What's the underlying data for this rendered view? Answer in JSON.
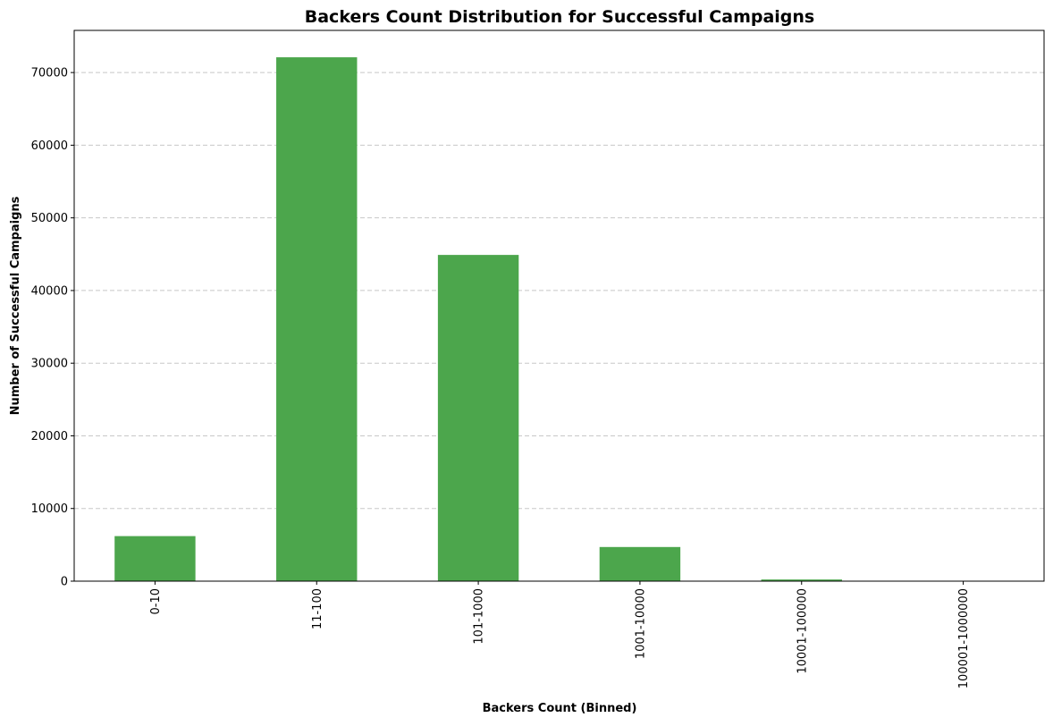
{
  "chart_data": {
    "type": "bar",
    "title": "Backers Count Distribution for Successful Campaigns",
    "xlabel": "Backers Count (Binned)",
    "ylabel": "Number of Successful Campaigns",
    "categories": [
      "0-10",
      "11-100",
      "101-1000",
      "1001-10000",
      "10001-100000",
      "100001-1000000"
    ],
    "values": [
      6200,
      72100,
      44900,
      4700,
      230,
      5
    ],
    "ylim": [
      0,
      75800
    ],
    "yticks": [
      0,
      10000,
      20000,
      30000,
      40000,
      50000,
      60000,
      70000
    ],
    "ytick_labels": [
      "0",
      "10000",
      "20000",
      "30000",
      "40000",
      "50000",
      "60000",
      "70000"
    ],
    "grid": "y, dashed",
    "bar_color": "#4ca64c",
    "grid_color": "#c8c8c8"
  }
}
